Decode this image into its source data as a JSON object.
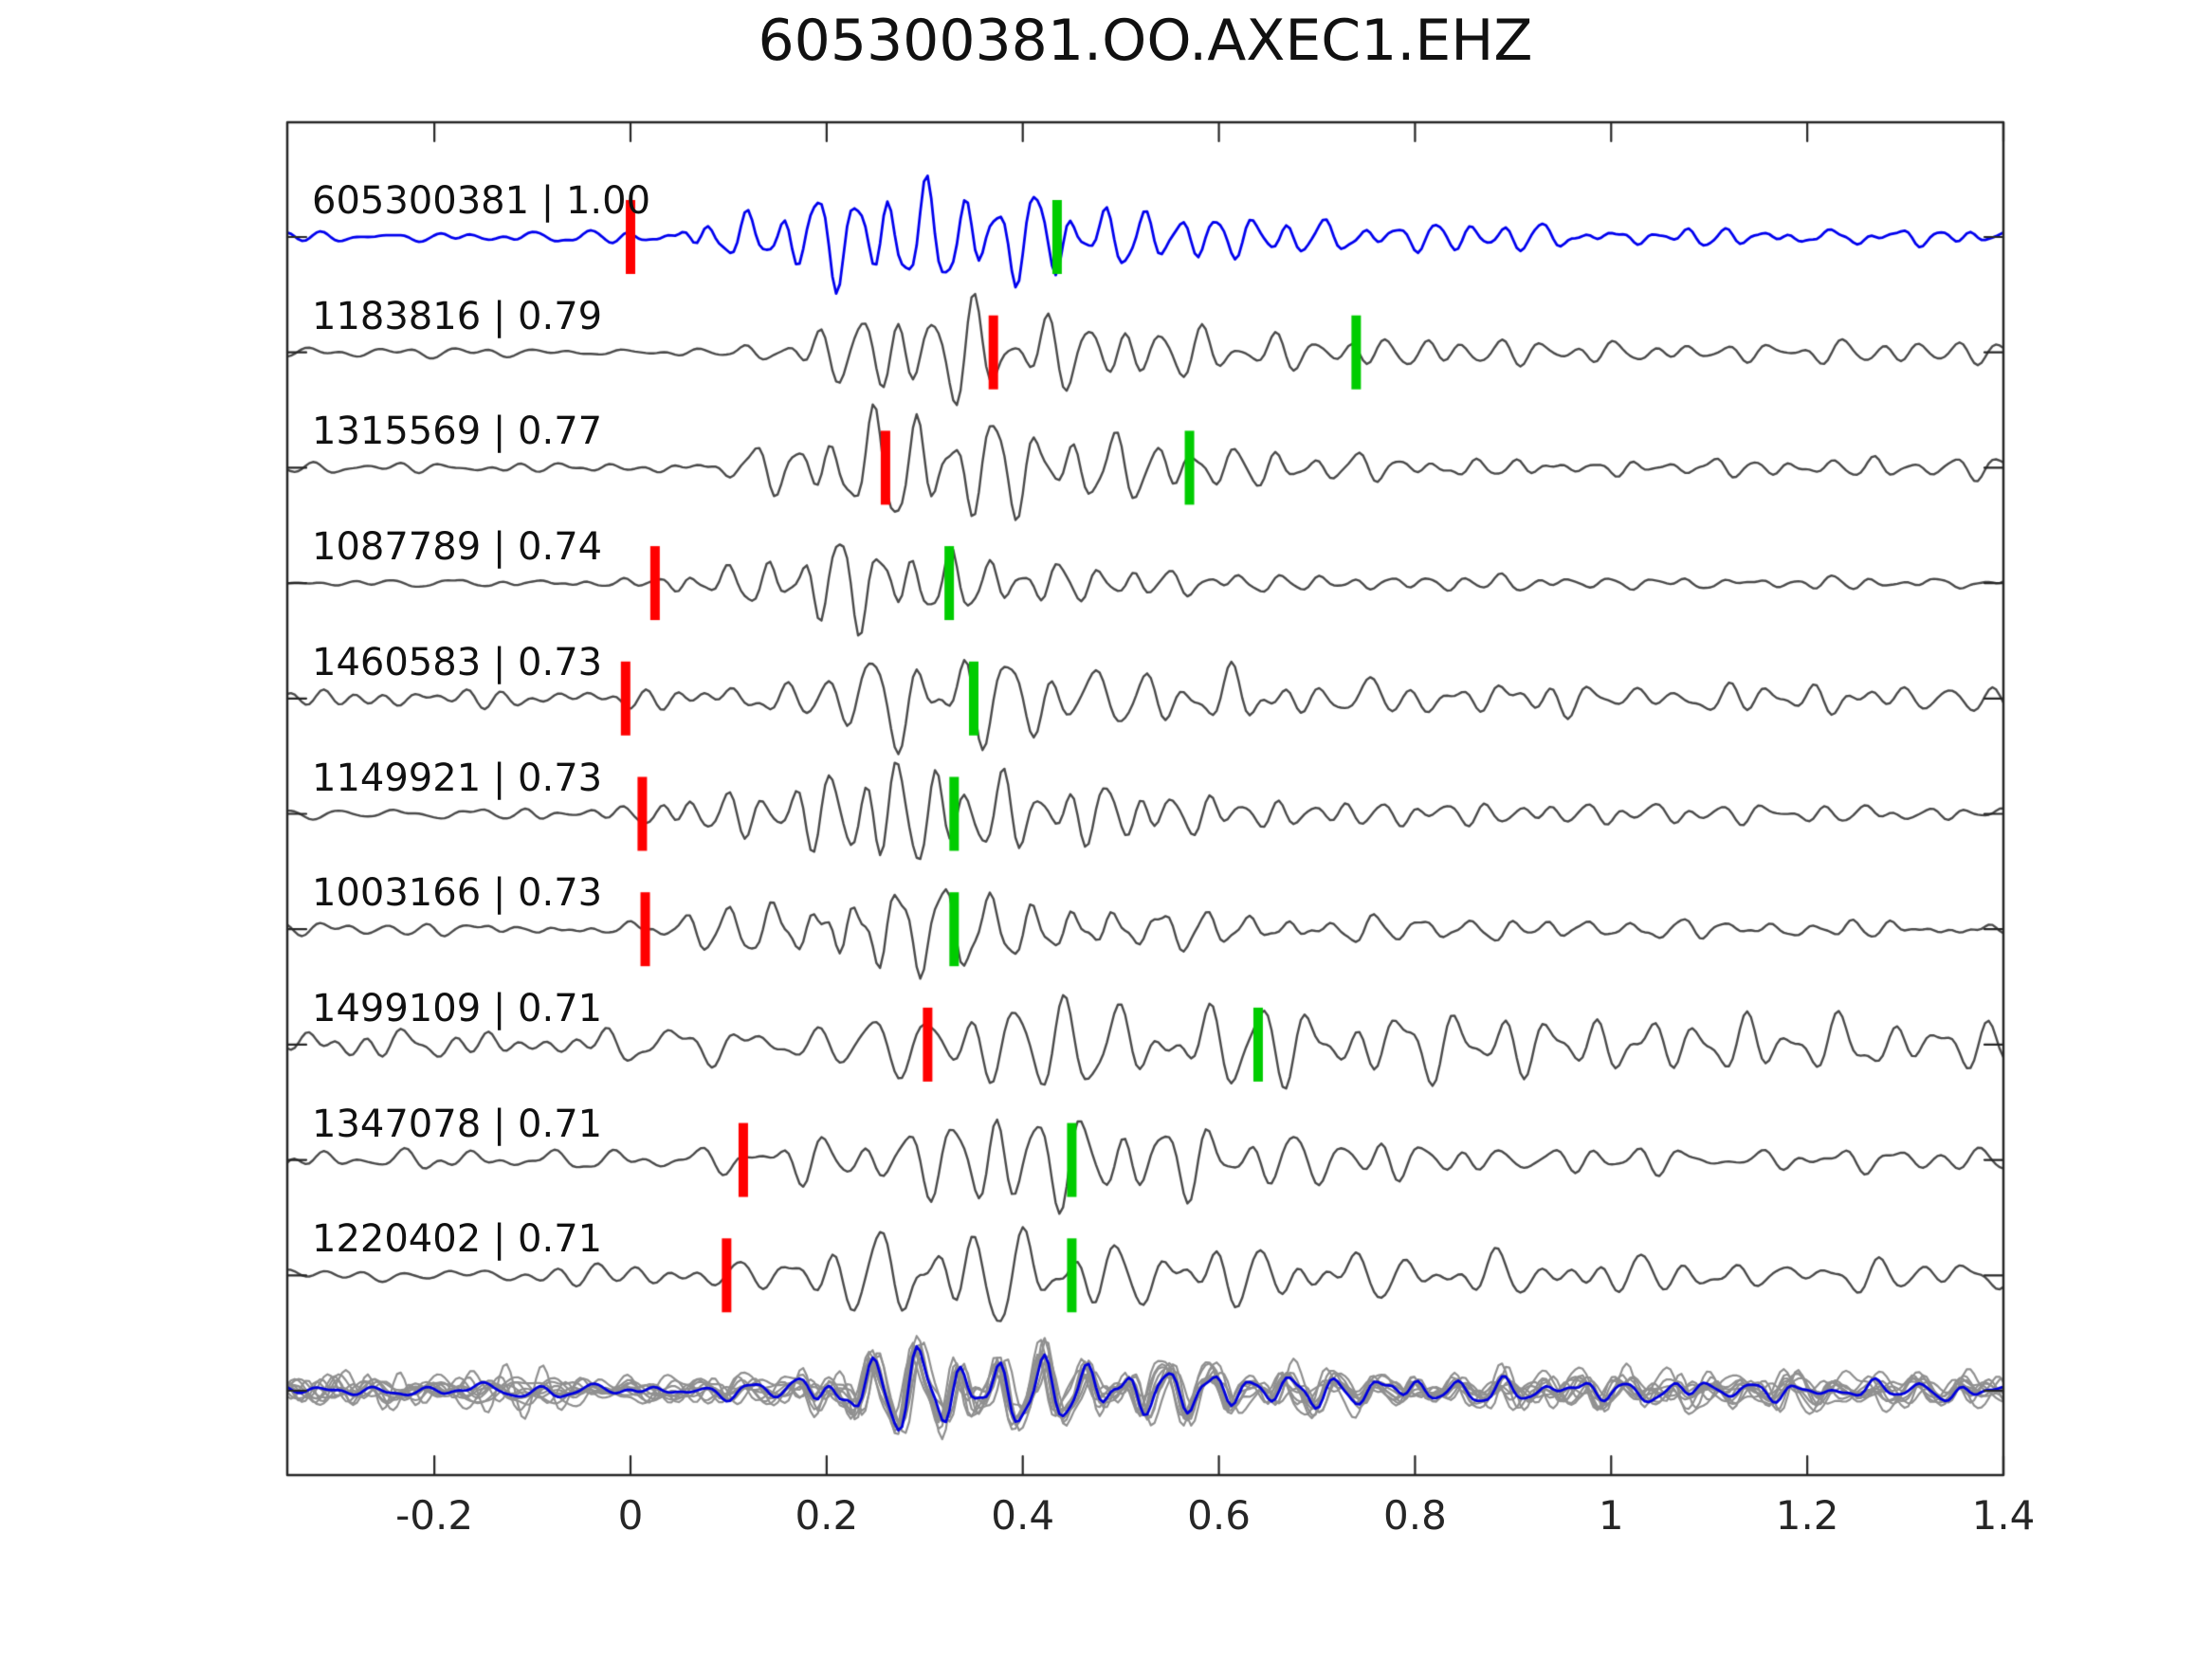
{
  "window": {
    "title": "605300381.OO.AXEC1.EHZ"
  },
  "chart_data": {
    "type": "line",
    "title": "605300381.OO.AXEC1.EHZ",
    "xlabel": "",
    "ylabel": "",
    "xlim": [
      -0.35,
      1.4
    ],
    "x_ticks": [
      "-0.2",
      "0",
      "0.2",
      "0.4",
      "0.6",
      "0.8",
      "1",
      "1.2",
      "1.4"
    ],
    "x_tick_values": [
      -0.2,
      0,
      0.2,
      0.4,
      0.6,
      0.8,
      1,
      1.2,
      1.4
    ],
    "grid": false,
    "legend": "none",
    "colors": {
      "template_trace": "#0000ee",
      "detection_trace": "#4a4a4a",
      "stack_member": "#909090",
      "stack_template": "#0000dd",
      "red_pick": "#ff0000",
      "green_pick": "#00cc00",
      "axis": "#262626"
    },
    "traces": [
      {
        "id": "605300381",
        "correlation": 1.0,
        "label": "605300381 | 1.00",
        "color": "#0000ee",
        "pick_red": 0.0,
        "pick_green": 0.435,
        "seed": 3,
        "freq": 26,
        "amp": 72,
        "noise": 0.1,
        "env": [
          [
            -0.35,
            0
          ],
          [
            0.02,
            0.06
          ],
          [
            0.07,
            0.35
          ],
          [
            0.13,
            0.45
          ],
          [
            0.18,
            0.62
          ],
          [
            0.23,
            0.95
          ],
          [
            0.3,
            1.0
          ],
          [
            0.37,
            0.8
          ],
          [
            0.44,
            0.6
          ],
          [
            0.52,
            0.46
          ],
          [
            0.6,
            0.32
          ],
          [
            0.7,
            0.24
          ],
          [
            0.85,
            0.18
          ],
          [
            1.0,
            0.15
          ],
          [
            1.4,
            0.13
          ]
        ]
      },
      {
        "id": "1183816",
        "correlation": 0.79,
        "label": "1183816 | 0.79",
        "color": "#4a4a4a",
        "pick_red": 0.37,
        "pick_green": 0.74,
        "seed": 17,
        "freq": 25,
        "amp": 74,
        "noise": 0.07,
        "env": [
          [
            -0.35,
            0
          ],
          [
            0.1,
            0.06
          ],
          [
            0.16,
            0.3
          ],
          [
            0.22,
            0.6
          ],
          [
            0.28,
            0.95
          ],
          [
            0.34,
            1.0
          ],
          [
            0.4,
            0.75
          ],
          [
            0.48,
            0.55
          ],
          [
            0.58,
            0.42
          ],
          [
            0.68,
            0.3
          ],
          [
            0.8,
            0.22
          ],
          [
            1.0,
            0.18
          ],
          [
            1.4,
            0.15
          ]
        ]
      },
      {
        "id": "1315569",
        "correlation": 0.77,
        "label": "1315569 | 0.77",
        "color": "#4a4a4a",
        "pick_red": 0.26,
        "pick_green": 0.57,
        "seed": 29,
        "freq": 26,
        "amp": 76,
        "noise": 0.07,
        "env": [
          [
            -0.35,
            0
          ],
          [
            0.06,
            0.05
          ],
          [
            0.12,
            0.3
          ],
          [
            0.18,
            0.55
          ],
          [
            0.24,
            0.9
          ],
          [
            0.29,
            1.0
          ],
          [
            0.36,
            0.85
          ],
          [
            0.44,
            0.6
          ],
          [
            0.52,
            0.45
          ],
          [
            0.62,
            0.3
          ],
          [
            0.75,
            0.2
          ],
          [
            0.95,
            0.15
          ],
          [
            1.4,
            0.12
          ]
        ]
      },
      {
        "id": "1087789",
        "correlation": 0.74,
        "label": "1087789 | 0.74",
        "color": "#4a4a4a",
        "pick_red": 0.025,
        "pick_green": 0.325,
        "seed": 41,
        "freq": 25,
        "amp": 66,
        "noise": 0.07,
        "env": [
          [
            -0.35,
            0
          ],
          [
            0.02,
            0.08
          ],
          [
            0.06,
            0.25
          ],
          [
            0.12,
            0.3
          ],
          [
            0.17,
            0.6
          ],
          [
            0.21,
            1.0
          ],
          [
            0.26,
            0.8
          ],
          [
            0.31,
            0.65
          ],
          [
            0.38,
            0.45
          ],
          [
            0.46,
            0.3
          ],
          [
            0.55,
            0.2
          ],
          [
            0.7,
            0.12
          ],
          [
            0.9,
            0.09
          ],
          [
            1.4,
            0.07
          ]
        ]
      },
      {
        "id": "1460583",
        "correlation": 0.73,
        "label": "1460583 | 0.73",
        "color": "#4a4a4a",
        "pick_red": -0.005,
        "pick_green": 0.35,
        "seed": 53,
        "freq": 24,
        "amp": 70,
        "noise": 0.1,
        "env": [
          [
            -0.35,
            0
          ],
          [
            0.0,
            0.07
          ],
          [
            0.08,
            0.12
          ],
          [
            0.14,
            0.2
          ],
          [
            0.19,
            0.55
          ],
          [
            0.25,
            0.85
          ],
          [
            0.31,
            1.0
          ],
          [
            0.38,
            0.8
          ],
          [
            0.46,
            0.65
          ],
          [
            0.55,
            0.5
          ],
          [
            0.65,
            0.38
          ],
          [
            0.78,
            0.25
          ],
          [
            0.95,
            0.17
          ],
          [
            1.4,
            0.13
          ]
        ]
      },
      {
        "id": "1149921",
        "correlation": 0.73,
        "label": "1149921 | 0.73",
        "color": "#4a4a4a",
        "pick_red": 0.012,
        "pick_green": 0.33,
        "seed": 67,
        "freq": 26,
        "amp": 72,
        "noise": 0.08,
        "env": [
          [
            -0.35,
            0
          ],
          [
            0.015,
            0.1
          ],
          [
            0.06,
            0.3
          ],
          [
            0.1,
            0.35
          ],
          [
            0.16,
            0.5
          ],
          [
            0.22,
            0.85
          ],
          [
            0.27,
            1.0
          ],
          [
            0.34,
            0.75
          ],
          [
            0.42,
            0.6
          ],
          [
            0.52,
            0.45
          ],
          [
            0.62,
            0.3
          ],
          [
            0.75,
            0.2
          ],
          [
            0.95,
            0.14
          ],
          [
            1.4,
            0.11
          ]
        ]
      },
      {
        "id": "1003166",
        "correlation": 0.73,
        "label": "1003166 | 0.73",
        "color": "#4a4a4a",
        "pick_red": 0.015,
        "pick_green": 0.33,
        "seed": 79,
        "freq": 25,
        "amp": 68,
        "noise": 0.09,
        "env": [
          [
            -0.35,
            0
          ],
          [
            0.02,
            0.1
          ],
          [
            0.07,
            0.28
          ],
          [
            0.12,
            0.32
          ],
          [
            0.17,
            0.6
          ],
          [
            0.22,
            0.95
          ],
          [
            0.27,
            1.0
          ],
          [
            0.33,
            0.7
          ],
          [
            0.4,
            0.55
          ],
          [
            0.5,
            0.42
          ],
          [
            0.6,
            0.3
          ],
          [
            0.72,
            0.2
          ],
          [
            0.9,
            0.14
          ],
          [
            1.4,
            0.11
          ]
        ]
      },
      {
        "id": "1499109",
        "correlation": 0.71,
        "label": "1499109 | 0.71",
        "color": "#4a4a4a",
        "pick_red": 0.303,
        "pick_green": 0.64,
        "seed": 97,
        "freq": 20,
        "amp": 64,
        "noise": 0.26,
        "env": [
          [
            -0.35,
            0
          ],
          [
            -0.3,
            0.06
          ],
          [
            0.0,
            0.1
          ],
          [
            0.15,
            0.2
          ],
          [
            0.22,
            0.45
          ],
          [
            0.3,
            0.75
          ],
          [
            0.37,
            1.0
          ],
          [
            0.45,
            0.9
          ],
          [
            0.55,
            0.75
          ],
          [
            0.65,
            0.65
          ],
          [
            0.78,
            0.5
          ],
          [
            0.9,
            0.42
          ],
          [
            1.05,
            0.36
          ],
          [
            1.2,
            0.32
          ],
          [
            1.4,
            0.3
          ]
        ]
      },
      {
        "id": "1347078",
        "correlation": 0.71,
        "label": "1347078 | 0.71",
        "color": "#4a4a4a",
        "pick_red": 0.115,
        "pick_green": 0.45,
        "seed": 113,
        "freq": 22,
        "amp": 68,
        "noise": 0.11,
        "env": [
          [
            -0.35,
            0
          ],
          [
            0.05,
            0.05
          ],
          [
            0.115,
            0.15
          ],
          [
            0.18,
            0.35
          ],
          [
            0.26,
            0.55
          ],
          [
            0.33,
            0.8
          ],
          [
            0.4,
            1.0
          ],
          [
            0.48,
            0.85
          ],
          [
            0.57,
            0.65
          ],
          [
            0.67,
            0.45
          ],
          [
            0.78,
            0.3
          ],
          [
            0.92,
            0.2
          ],
          [
            1.1,
            0.15
          ],
          [
            1.4,
            0.12
          ]
        ]
      },
      {
        "id": "1220402",
        "correlation": 0.71,
        "label": "1220402 | 0.71",
        "color": "#4a4a4a",
        "pick_red": 0.098,
        "pick_green": 0.45,
        "seed": 131,
        "freq": 22,
        "amp": 62,
        "noise": 0.2,
        "env": [
          [
            -0.35,
            0
          ],
          [
            0.0,
            0.1
          ],
          [
            0.1,
            0.2
          ],
          [
            0.16,
            0.4
          ],
          [
            0.22,
            0.6
          ],
          [
            0.28,
            0.9
          ],
          [
            0.34,
            1.0
          ],
          [
            0.42,
            0.75
          ],
          [
            0.52,
            0.6
          ],
          [
            0.62,
            0.45
          ],
          [
            0.75,
            0.35
          ],
          [
            0.9,
            0.3
          ],
          [
            1.1,
            0.26
          ],
          [
            1.4,
            0.25
          ]
        ]
      }
    ],
    "stack": {
      "members": 10,
      "seed": 211,
      "freq": 25,
      "amp": 54,
      "member_noise": 0.22,
      "template_noise": 0.12,
      "member_color": "#909090",
      "template_color": "#0000dd",
      "env": [
        [
          -0.35,
          0
        ],
        [
          0.05,
          0.06
        ],
        [
          0.15,
          0.15
        ],
        [
          0.2,
          0.45
        ],
        [
          0.26,
          0.8
        ],
        [
          0.31,
          1.0
        ],
        [
          0.38,
          0.85
        ],
        [
          0.46,
          0.7
        ],
        [
          0.55,
          0.55
        ],
        [
          0.65,
          0.4
        ],
        [
          0.78,
          0.3
        ],
        [
          0.95,
          0.22
        ],
        [
          1.2,
          0.18
        ],
        [
          1.4,
          0.16
        ]
      ]
    }
  }
}
